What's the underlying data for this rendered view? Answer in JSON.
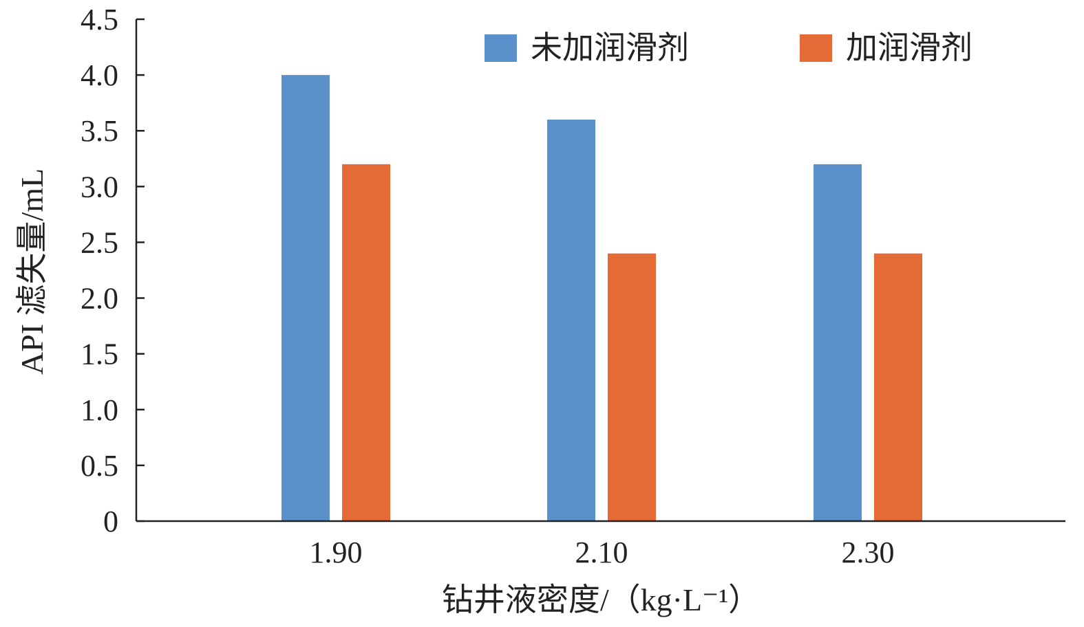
{
  "chart_data": {
    "type": "bar",
    "categories": [
      "1.90",
      "2.10",
      "2.30"
    ],
    "series": [
      {
        "name": "未加润滑剂",
        "values": [
          4.0,
          3.6,
          3.2
        ],
        "color": "#5b91cb"
      },
      {
        "name": "加润滑剂",
        "values": [
          3.2,
          2.4,
          2.4
        ],
        "color": "#e46a36"
      }
    ],
    "xlabel": "钻井液密度/（kg·L⁻¹）",
    "ylabel": "API 滤失量/mL",
    "ylim": [
      0,
      4.5
    ],
    "yticks": [
      "0",
      "0.5",
      "1.0",
      "1.5",
      "2.0",
      "2.5",
      "3.0",
      "3.5",
      "4.0",
      "4.5"
    ],
    "grid": false,
    "legend_position": "top-right"
  }
}
